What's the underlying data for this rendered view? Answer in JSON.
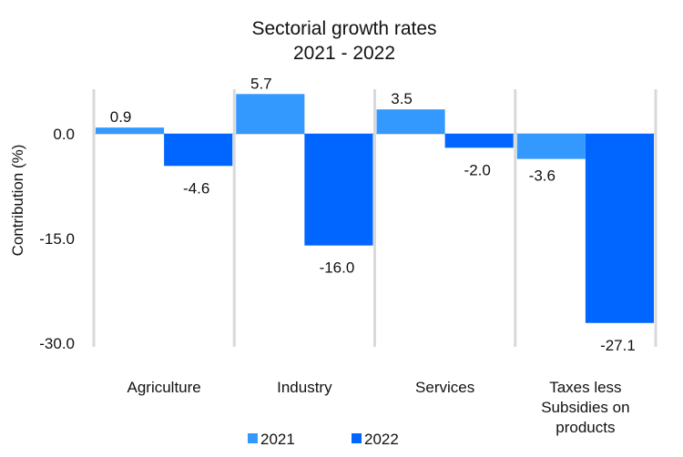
{
  "chart_data": {
    "type": "bar",
    "title": "Sectorial growth rates",
    "subtitle": "2021 - 2022",
    "xlabel": "",
    "ylabel": "Contribution (%)",
    "ylim": [
      -30,
      7
    ],
    "yticks": [
      0,
      -15,
      -30
    ],
    "ytick_labels": [
      "0.0",
      "-15.0",
      "-30.0"
    ],
    "grid": "vertical category separators",
    "categories": [
      [
        "Agriculture"
      ],
      [
        "Industry"
      ],
      [
        "Services"
      ],
      [
        "Taxes less",
        "Subsidies on",
        "products"
      ]
    ],
    "series": [
      {
        "name": "2021",
        "color": "#3399ff",
        "values": [
          0.9,
          5.7,
          3.5,
          -3.6
        ],
        "labels": [
          "0.9",
          "5.7",
          "3.5",
          "-3.6"
        ]
      },
      {
        "name": "2022",
        "color": "#0066ff",
        "values": [
          -4.6,
          -16.0,
          -2.0,
          -27.1
        ],
        "labels": [
          "-4.6",
          "-16.0",
          "-2.0",
          "-27.1"
        ]
      }
    ],
    "legend": "bottom"
  }
}
